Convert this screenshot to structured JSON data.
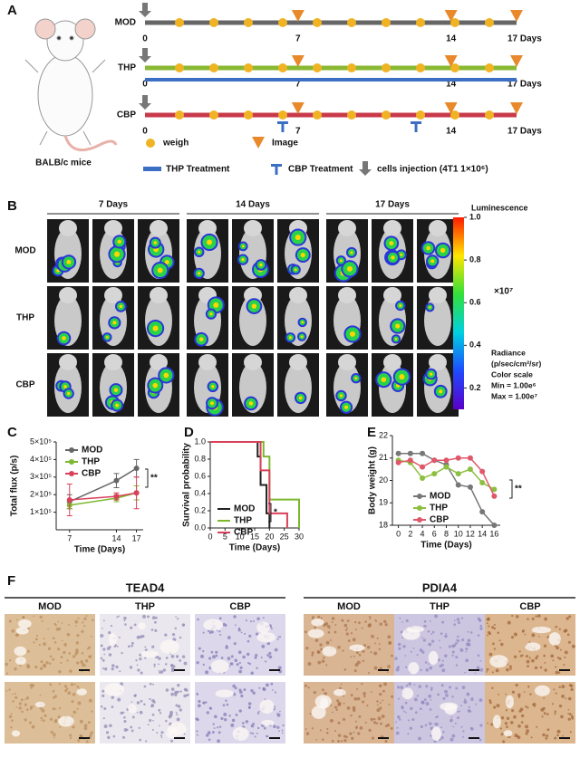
{
  "panel_labels": [
    "A",
    "B",
    "C",
    "D",
    "E",
    "F"
  ],
  "timeline": {
    "groups": [
      "MOD",
      "THP",
      "CBP"
    ],
    "xlim": [
      0,
      17
    ],
    "ticks": [
      0,
      7,
      14,
      {
        "value": 17,
        "label": "17 Days"
      }
    ],
    "image_days": [
      7,
      14,
      17
    ],
    "cbp_treatment_days": [
      6.3,
      12.4
    ],
    "animal": "BALB/c mice",
    "legend": [
      "weigh",
      "Image",
      "THP Treatment",
      "CBP Treatment",
      "cells injection (4T1 1×10⁶)"
    ]
  },
  "imaging": {
    "columns": [
      "7 Days",
      "14 Days",
      "17 Days"
    ],
    "rows": [
      "MOD",
      "THP",
      "CBP"
    ],
    "colorbar": {
      "title": "Luminescence",
      "lim": [
        0.1,
        1
      ],
      "ticks": [
        {
          "value": 1,
          "label": "1.0"
        },
        0.8,
        0.6,
        0.4,
        0.2
      ],
      "multiplier": "×10⁷",
      "notes": [
        "Radiance",
        "(p/sec/cm²/sr)",
        "Color scale",
        "Min = 1.00e⁶",
        "Max = 1.00e⁷"
      ]
    }
  },
  "chart_data": [
    {
      "type": "line",
      "ylabel": "Total flux (p/s)",
      "xlabel": "Time (Days)",
      "xlim": [
        5,
        18
      ],
      "xticks": [
        7,
        14,
        17
      ],
      "ylim": [
        0,
        500000
      ],
      "yticks": [
        {
          "value": 100000,
          "label": "1×10⁵"
        },
        {
          "value": 200000,
          "label": "2×10⁵"
        },
        {
          "value": 300000,
          "label": "3×10⁵"
        },
        {
          "value": 400000,
          "label": "4×10⁵"
        },
        {
          "value": 500000,
          "label": "5×10⁵"
        }
      ],
      "x": [
        7,
        14,
        17
      ],
      "series": [
        {
          "name": "MOD",
          "color": "#666666",
          "values": [
            160000,
            280000,
            350000
          ],
          "errors": [
            40000,
            40000,
            50000
          ]
        },
        {
          "name": "THP",
          "color": "#7cb82f",
          "values": [
            140000,
            180000,
            210000
          ],
          "errors": [
            20000,
            20000,
            40000
          ]
        },
        {
          "name": "CBP",
          "color": "#d9415a",
          "values": [
            170000,
            190000,
            210000
          ],
          "errors": [
            90000,
            20000,
            90000
          ]
        }
      ],
      "annotation": "**"
    },
    {
      "type": "step",
      "ylabel": "Survival probability",
      "xlabel": "Time (Days)",
      "xlim": [
        0,
        30
      ],
      "xticks": [
        0,
        5,
        10,
        15,
        20,
        25,
        30
      ],
      "ylim": [
        0,
        1
      ],
      "yticks": [
        {
          "value": 0,
          "label": "0.0"
        },
        0.2,
        0.4,
        0.6,
        0.8,
        {
          "value": 1,
          "label": "1.0"
        }
      ],
      "series": [
        {
          "name": "MOD",
          "color": "#222222",
          "x": [
            0,
            16,
            17,
            19,
            20
          ],
          "values": [
            1,
            0.83,
            0.5,
            0.17,
            0
          ]
        },
        {
          "name": "THP",
          "color": "#7cb82f",
          "x": [
            0,
            18,
            20,
            30
          ],
          "values": [
            1,
            0.83,
            0.33,
            0
          ]
        },
        {
          "name": "CBP",
          "color": "#d9415a",
          "x": [
            0,
            17,
            20,
            26
          ],
          "values": [
            1,
            0.67,
            0.17,
            0
          ]
        }
      ],
      "annotation": "*"
    },
    {
      "type": "line",
      "ylabel": "Body weight (g)",
      "xlabel": "Time (Days)",
      "xlim": [
        -1,
        17
      ],
      "xticks": [
        0,
        2,
        4,
        6,
        8,
        10,
        12,
        14,
        16
      ],
      "ylim": [
        18,
        22
      ],
      "yticks": [
        18,
        19,
        20,
        21,
        22
      ],
      "x": [
        0,
        2,
        4,
        6,
        8,
        10,
        12,
        14,
        16
      ],
      "series": [
        {
          "name": "MOD",
          "color": "#777777",
          "values": [
            21.2,
            21.2,
            21.2,
            20.9,
            20.7,
            19.8,
            19.7,
            18.6,
            18.0
          ]
        },
        {
          "name": "THP",
          "color": "#8cbf3f",
          "values": [
            20.9,
            20.8,
            20.1,
            20.3,
            20.6,
            20.3,
            20.5,
            19.9,
            19.6
          ]
        },
        {
          "name": "CBP",
          "color": "#e0576a",
          "values": [
            20.8,
            20.9,
            20.6,
            20.9,
            20.9,
            21.0,
            21.0,
            20.4,
            19.3
          ]
        }
      ],
      "annotation": "**"
    }
  ],
  "histology": {
    "markers": [
      "TEAD4",
      "PDIA4"
    ],
    "columns": [
      "MOD",
      "THP",
      "CBP"
    ]
  }
}
